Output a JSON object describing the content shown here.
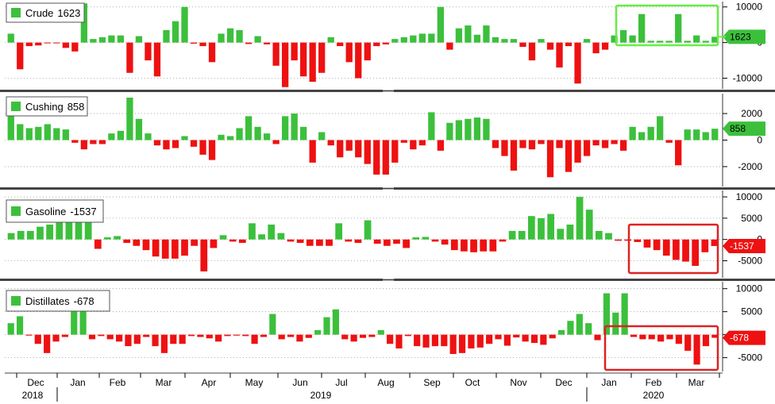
{
  "colors": {
    "up": "#3cc03c",
    "down": "#ee1111",
    "green_box": "#66ee44",
    "red_box": "#dd2222",
    "grid": "#999999",
    "separator": "#444444"
  },
  "x_axis": {
    "months": [
      "Dec",
      "Jan",
      "Feb",
      "Mar",
      "Apr",
      "May",
      "Jun",
      "Jul",
      "Aug",
      "Sep",
      "Oct",
      "Nov",
      "Dec",
      "Jan",
      "Feb",
      "Mar"
    ],
    "years": [
      "2018",
      "2019",
      "2020"
    ]
  },
  "chart_data": [
    {
      "type": "bar",
      "name": "Crude",
      "legend": "Crude",
      "last_value": "1623",
      "ylim": [
        -13000,
        11500
      ],
      "yticks": [
        10000,
        0,
        -10000
      ],
      "ytick_labels": [
        "10000",
        "0",
        "-10000"
      ],
      "values": [
        2500,
        -7500,
        -1000,
        -800,
        -200,
        -200,
        -1500,
        -2500,
        11000,
        1000,
        1500,
        2000,
        2000,
        -8500,
        1800,
        -5000,
        -9500,
        3500,
        6000,
        10000,
        -300,
        -1000,
        -5500,
        2500,
        4000,
        3500,
        -400,
        1800,
        -500,
        -6500,
        -12500,
        -5000,
        -9500,
        -11000,
        -8500,
        1500,
        -1000,
        -5500,
        -10000,
        -5000,
        -1000,
        -500,
        1000,
        1500,
        2000,
        2500,
        2500,
        10000,
        -2000,
        4000,
        4800,
        2200,
        4800,
        1500,
        1000,
        1000,
        -1200,
        -5000,
        1000,
        -2000,
        -7000,
        -1000,
        -11500,
        1000,
        -3000,
        -2000,
        2000,
        3500,
        2000,
        8000,
        500,
        500,
        500,
        8000,
        500,
        2000,
        500,
        1623
      ]
    },
    {
      "type": "bar",
      "name": "Cushing",
      "legend": "Cushing",
      "last_value": "858",
      "ylim": [
        -3500,
        3500
      ],
      "yticks": [
        2000,
        0,
        -2000
      ],
      "ytick_labels": [
        "2000",
        "0",
        "-2000"
      ],
      "values": [
        1800,
        1200,
        900,
        1000,
        1200,
        900,
        800,
        -200,
        -700,
        -300,
        -300,
        500,
        700,
        3200,
        1600,
        500,
        -400,
        -700,
        -600,
        300,
        -500,
        -1100,
        -1500,
        400,
        300,
        900,
        1800,
        1000,
        500,
        -300,
        1800,
        2000,
        1000,
        -1700,
        600,
        -400,
        -1300,
        -800,
        -1300,
        -1800,
        -2600,
        -2600,
        -1700,
        -200,
        -700,
        -400,
        2100,
        -800,
        1300,
        1500,
        1600,
        1700,
        1600,
        -600,
        -1200,
        -2300,
        -600,
        -700,
        -300,
        -2800,
        -600,
        -2400,
        -1700,
        -1200,
        -400,
        -600,
        -300,
        -800,
        1000,
        600,
        1000,
        1800,
        -200,
        -1900,
        800,
        800,
        600,
        858
      ]
    },
    {
      "type": "bar",
      "name": "Gasoline",
      "legend": "Gasoline",
      "last_value": "-1537",
      "ylim": [
        -9000,
        11500
      ],
      "yticks": [
        10000,
        5000,
        0,
        -5000
      ],
      "ytick_labels": [
        "10000",
        "5000",
        "0",
        "-5000"
      ],
      "values": [
        1500,
        2000,
        2000,
        3000,
        3500,
        4500,
        4500,
        4500,
        4500,
        -2200,
        500,
        800,
        -800,
        -1500,
        -2500,
        -4000,
        -4500,
        -4500,
        -3800,
        -1500,
        -7500,
        -2000,
        1000,
        -500,
        -800,
        3800,
        1200,
        3500,
        1500,
        -500,
        -800,
        -1500,
        -1500,
        -1500,
        3800,
        -500,
        -800,
        4500,
        -1000,
        -1500,
        -1000,
        -2000,
        500,
        600,
        -500,
        -1200,
        -2500,
        -2800,
        -3000,
        -2800,
        -2800,
        -500,
        2000,
        2000,
        5500,
        5000,
        6000,
        2500,
        3500,
        10000,
        7000,
        2000,
        1500,
        -300,
        -300,
        -600,
        -1900,
        -2500,
        -3800,
        -4800,
        -5200,
        -6200,
        -3000,
        -1537
      ]
    },
    {
      "type": "bar",
      "name": "Distillates",
      "legend": "Distillates",
      "last_value": "-678",
      "ylim": [
        -8000,
        11500
      ],
      "yticks": [
        10000,
        5000,
        0,
        -5000
      ],
      "ytick_labels": [
        "10000",
        "5000",
        "0",
        "-5000"
      ],
      "values": [
        2500,
        4000,
        -200,
        -2000,
        -4000,
        -1500,
        -500,
        7000,
        6500,
        -1000,
        -300,
        -1000,
        -1500,
        -2500,
        -2000,
        -500,
        -2500,
        -4000,
        -2000,
        -2000,
        -300,
        -500,
        -800,
        -1500,
        -300,
        -200,
        -300,
        -2000,
        -500,
        4500,
        -1000,
        -500,
        -1500,
        -700,
        1000,
        3800,
        5500,
        -1000,
        -1500,
        -700,
        -500,
        1000,
        -2000,
        -3000,
        -300,
        -2500,
        -2800,
        -2500,
        -2500,
        -4200,
        -4000,
        -3000,
        -2800,
        -2000,
        -1000,
        -2400,
        -600,
        -1500,
        -1800,
        -2200,
        -800,
        1000,
        3000,
        4500,
        2500,
        -1200,
        9000,
        4800,
        9000,
        -500,
        -1000,
        -1000,
        -1500,
        -1000,
        -2000,
        -3500,
        -6500,
        -2500,
        -678
      ]
    }
  ]
}
